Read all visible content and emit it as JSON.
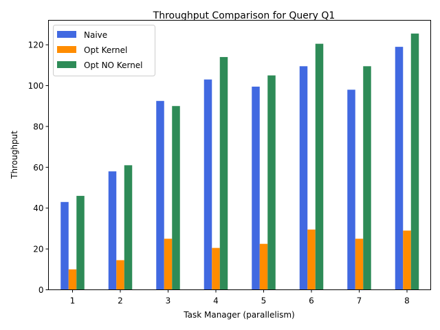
{
  "chart_data": {
    "type": "bar",
    "title": "Throughput Comparison for Query Q1",
    "xlabel": "Task Manager (parallelism)",
    "ylabel": "Throughput",
    "categories": [
      "1",
      "2",
      "3",
      "4",
      "5",
      "6",
      "7",
      "8"
    ],
    "series": [
      {
        "name": "Naive",
        "color": "#4169e1",
        "values": [
          43,
          58,
          92.5,
          103,
          99.5,
          109.5,
          98,
          119
        ]
      },
      {
        "name": "Opt Kernel",
        "color": "#ff8c00",
        "values": [
          10,
          14.5,
          25,
          20.5,
          22.5,
          29.5,
          25,
          29
        ]
      },
      {
        "name": "Opt NO Kernel",
        "color": "#2e8b57",
        "values": [
          46,
          61,
          90,
          114,
          105,
          120.5,
          109.5,
          125.5
        ]
      }
    ],
    "ylim": [
      0,
      132
    ],
    "yticks": [
      0,
      20,
      40,
      60,
      80,
      100,
      120
    ],
    "legend": "top-left",
    "grid": false
  }
}
